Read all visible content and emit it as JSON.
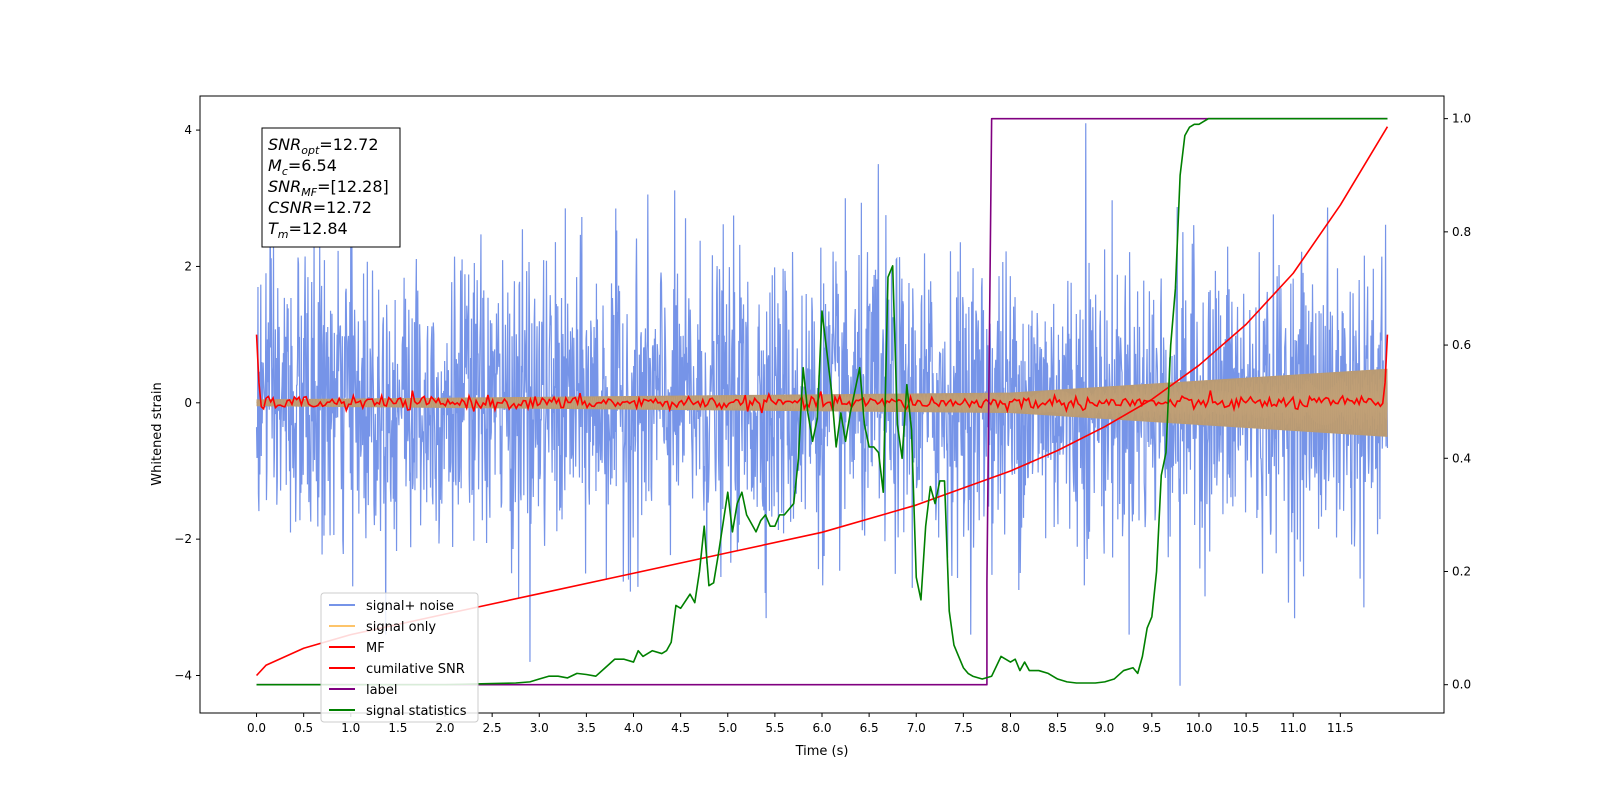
{
  "chart_data": {
    "type": "line",
    "xlabel": "Time (s)",
    "ylabel": "Whitened strain",
    "xlim": [
      -0.6,
      12.6
    ],
    "ylim": [
      -4.55,
      4.5
    ],
    "y2lim": [
      -0.05,
      1.04
    ],
    "x_ticks": [
      "0.0",
      "0.5",
      "1.0",
      "1.5",
      "2.0",
      "2.5",
      "3.0",
      "3.5",
      "4.0",
      "4.5",
      "5.0",
      "5.5",
      "6.0",
      "6.5",
      "7.0",
      "7.5",
      "8.0",
      "8.5",
      "9.0",
      "9.5",
      "10.0",
      "10.5",
      "11.0",
      "11.5"
    ],
    "y_ticks": [
      "4",
      "2",
      "0",
      "−2",
      "−4"
    ],
    "y_tick_values": [
      4,
      2,
      0,
      -2,
      -4
    ],
    "y2_ticks": [
      "1.0",
      "0.8",
      "0.6",
      "0.4",
      "0.2",
      "0.0"
    ],
    "y2_tick_values": [
      1.0,
      0.8,
      0.6,
      0.4,
      0.2,
      0.0
    ],
    "legend_placement": "lower-left",
    "annotation": {
      "lines": [
        {
          "sym": "SNR",
          "sub": "opt",
          "val": "=12.72"
        },
        {
          "sym": "M",
          "sub": "c",
          "val": "=6.54"
        },
        {
          "sym": "SNR",
          "sub": "MF",
          "val": "=[12.28]"
        },
        {
          "sym": "CSNR",
          "sub": "",
          "val": "=12.72"
        },
        {
          "sym": "T",
          "sub": "m",
          "val": "=12.84"
        }
      ]
    },
    "series": [
      {
        "name": "signal+ noise",
        "color": "#7694e8",
        "axis": "left",
        "generated": "noise",
        "x_range": [
          0,
          12
        ],
        "amplitude_std": 1.05,
        "peaks": [
          [
            0.1,
            1.9
          ],
          [
            1.0,
            3.3
          ],
          [
            2.9,
            -3.8
          ],
          [
            6.6,
            3.5
          ],
          [
            8.8,
            4.1
          ],
          [
            9.8,
            -4.15
          ],
          [
            11.75,
            -3.0
          ]
        ]
      },
      {
        "name": "signal only",
        "color": "#fdc46a",
        "axis": "left",
        "generated": "chirp",
        "x_range": [
          0,
          12
        ],
        "envelope": [
          [
            0,
            0.05
          ],
          [
            8,
            0.15
          ],
          [
            12,
            0.5
          ]
        ]
      },
      {
        "name": "MF",
        "color": "#ff0000",
        "axis": "left",
        "generated": "matched-filter",
        "x_range": [
          0,
          12
        ],
        "start_value": 1.0,
        "end_value": 1.0,
        "noise_std": 0.05
      },
      {
        "name": "cumilative SNR",
        "color": "#ff0000",
        "axis": "left",
        "x": [
          0,
          0.1,
          0.5,
          1,
          2,
          3,
          4,
          5,
          6,
          7,
          7.5,
          8,
          8.5,
          9,
          9.5,
          10,
          10.5,
          11,
          11.5,
          12
        ],
        "y": [
          -4.0,
          -3.85,
          -3.6,
          -3.4,
          -3.1,
          -2.8,
          -2.5,
          -2.2,
          -1.9,
          -1.5,
          -1.25,
          -1.0,
          -0.7,
          -0.35,
          0.05,
          0.55,
          1.15,
          1.9,
          2.9,
          4.05
        ]
      },
      {
        "name": "label",
        "color": "#800080",
        "axis": "right",
        "x": [
          0,
          7.75,
          7.75,
          7.8,
          12
        ],
        "y": [
          0.0,
          0.0,
          0.18,
          1.0,
          1.0
        ]
      },
      {
        "name": "signal statistics",
        "color": "#008000",
        "axis": "right",
        "x": [
          0,
          0.5,
          1.0,
          1.5,
          2.0,
          2.5,
          2.75,
          2.9,
          3.0,
          3.1,
          3.2,
          3.3,
          3.4,
          3.5,
          3.6,
          3.7,
          3.8,
          3.9,
          4.0,
          4.05,
          4.1,
          4.2,
          4.3,
          4.35,
          4.4,
          4.45,
          4.5,
          4.6,
          4.65,
          4.7,
          4.75,
          4.8,
          4.85,
          4.9,
          5.0,
          5.05,
          5.1,
          5.15,
          5.2,
          5.3,
          5.35,
          5.4,
          5.45,
          5.5,
          5.55,
          5.6,
          5.7,
          5.75,
          5.8,
          5.85,
          5.9,
          5.95,
          6.0,
          6.1,
          6.15,
          6.2,
          6.25,
          6.3,
          6.4,
          6.45,
          6.5,
          6.55,
          6.6,
          6.65,
          6.7,
          6.75,
          6.8,
          6.85,
          6.9,
          6.95,
          7.0,
          7.05,
          7.1,
          7.15,
          7.2,
          7.25,
          7.3,
          7.35,
          7.4,
          7.45,
          7.5,
          7.55,
          7.6,
          7.7,
          7.8,
          7.9,
          8.0,
          8.05,
          8.1,
          8.15,
          8.2,
          8.3,
          8.4,
          8.5,
          8.6,
          8.7,
          8.8,
          8.9,
          9.0,
          9.1,
          9.2,
          9.3,
          9.35,
          9.4,
          9.45,
          9.5,
          9.55,
          9.6,
          9.65,
          9.7,
          9.75,
          9.8,
          9.85,
          9.9,
          9.95,
          10.0,
          10.05,
          10.1,
          10.2,
          10.3,
          10.4,
          10.5,
          10.6,
          10.8,
          11.0,
          11.5,
          12.0
        ],
        "y": [
          0.0,
          0.0,
          0.0,
          0.0,
          0.0,
          0.002,
          0.003,
          0.005,
          0.01,
          0.015,
          0.015,
          0.012,
          0.02,
          0.018,
          0.015,
          0.03,
          0.045,
          0.045,
          0.04,
          0.06,
          0.05,
          0.06,
          0.055,
          0.06,
          0.075,
          0.14,
          0.135,
          0.16,
          0.145,
          0.2,
          0.28,
          0.175,
          0.18,
          0.23,
          0.34,
          0.27,
          0.32,
          0.34,
          0.3,
          0.27,
          0.29,
          0.3,
          0.28,
          0.28,
          0.3,
          0.3,
          0.32,
          0.4,
          0.56,
          0.48,
          0.43,
          0.47,
          0.66,
          0.52,
          0.42,
          0.48,
          0.43,
          0.48,
          0.56,
          0.46,
          0.42,
          0.42,
          0.41,
          0.34,
          0.72,
          0.74,
          0.46,
          0.4,
          0.53,
          0.45,
          0.19,
          0.15,
          0.28,
          0.35,
          0.32,
          0.36,
          0.36,
          0.13,
          0.07,
          0.05,
          0.03,
          0.02,
          0.015,
          0.01,
          0.015,
          0.05,
          0.04,
          0.045,
          0.025,
          0.04,
          0.025,
          0.025,
          0.02,
          0.01,
          0.005,
          0.003,
          0.003,
          0.003,
          0.005,
          0.01,
          0.025,
          0.03,
          0.02,
          0.05,
          0.1,
          0.12,
          0.2,
          0.37,
          0.41,
          0.6,
          0.7,
          0.9,
          0.97,
          0.985,
          0.99,
          0.99,
          0.995,
          1.0,
          1.0,
          1.0,
          1.0,
          1.0,
          1.0,
          1.0,
          1.0,
          1.0,
          1.0
        ]
      }
    ]
  }
}
